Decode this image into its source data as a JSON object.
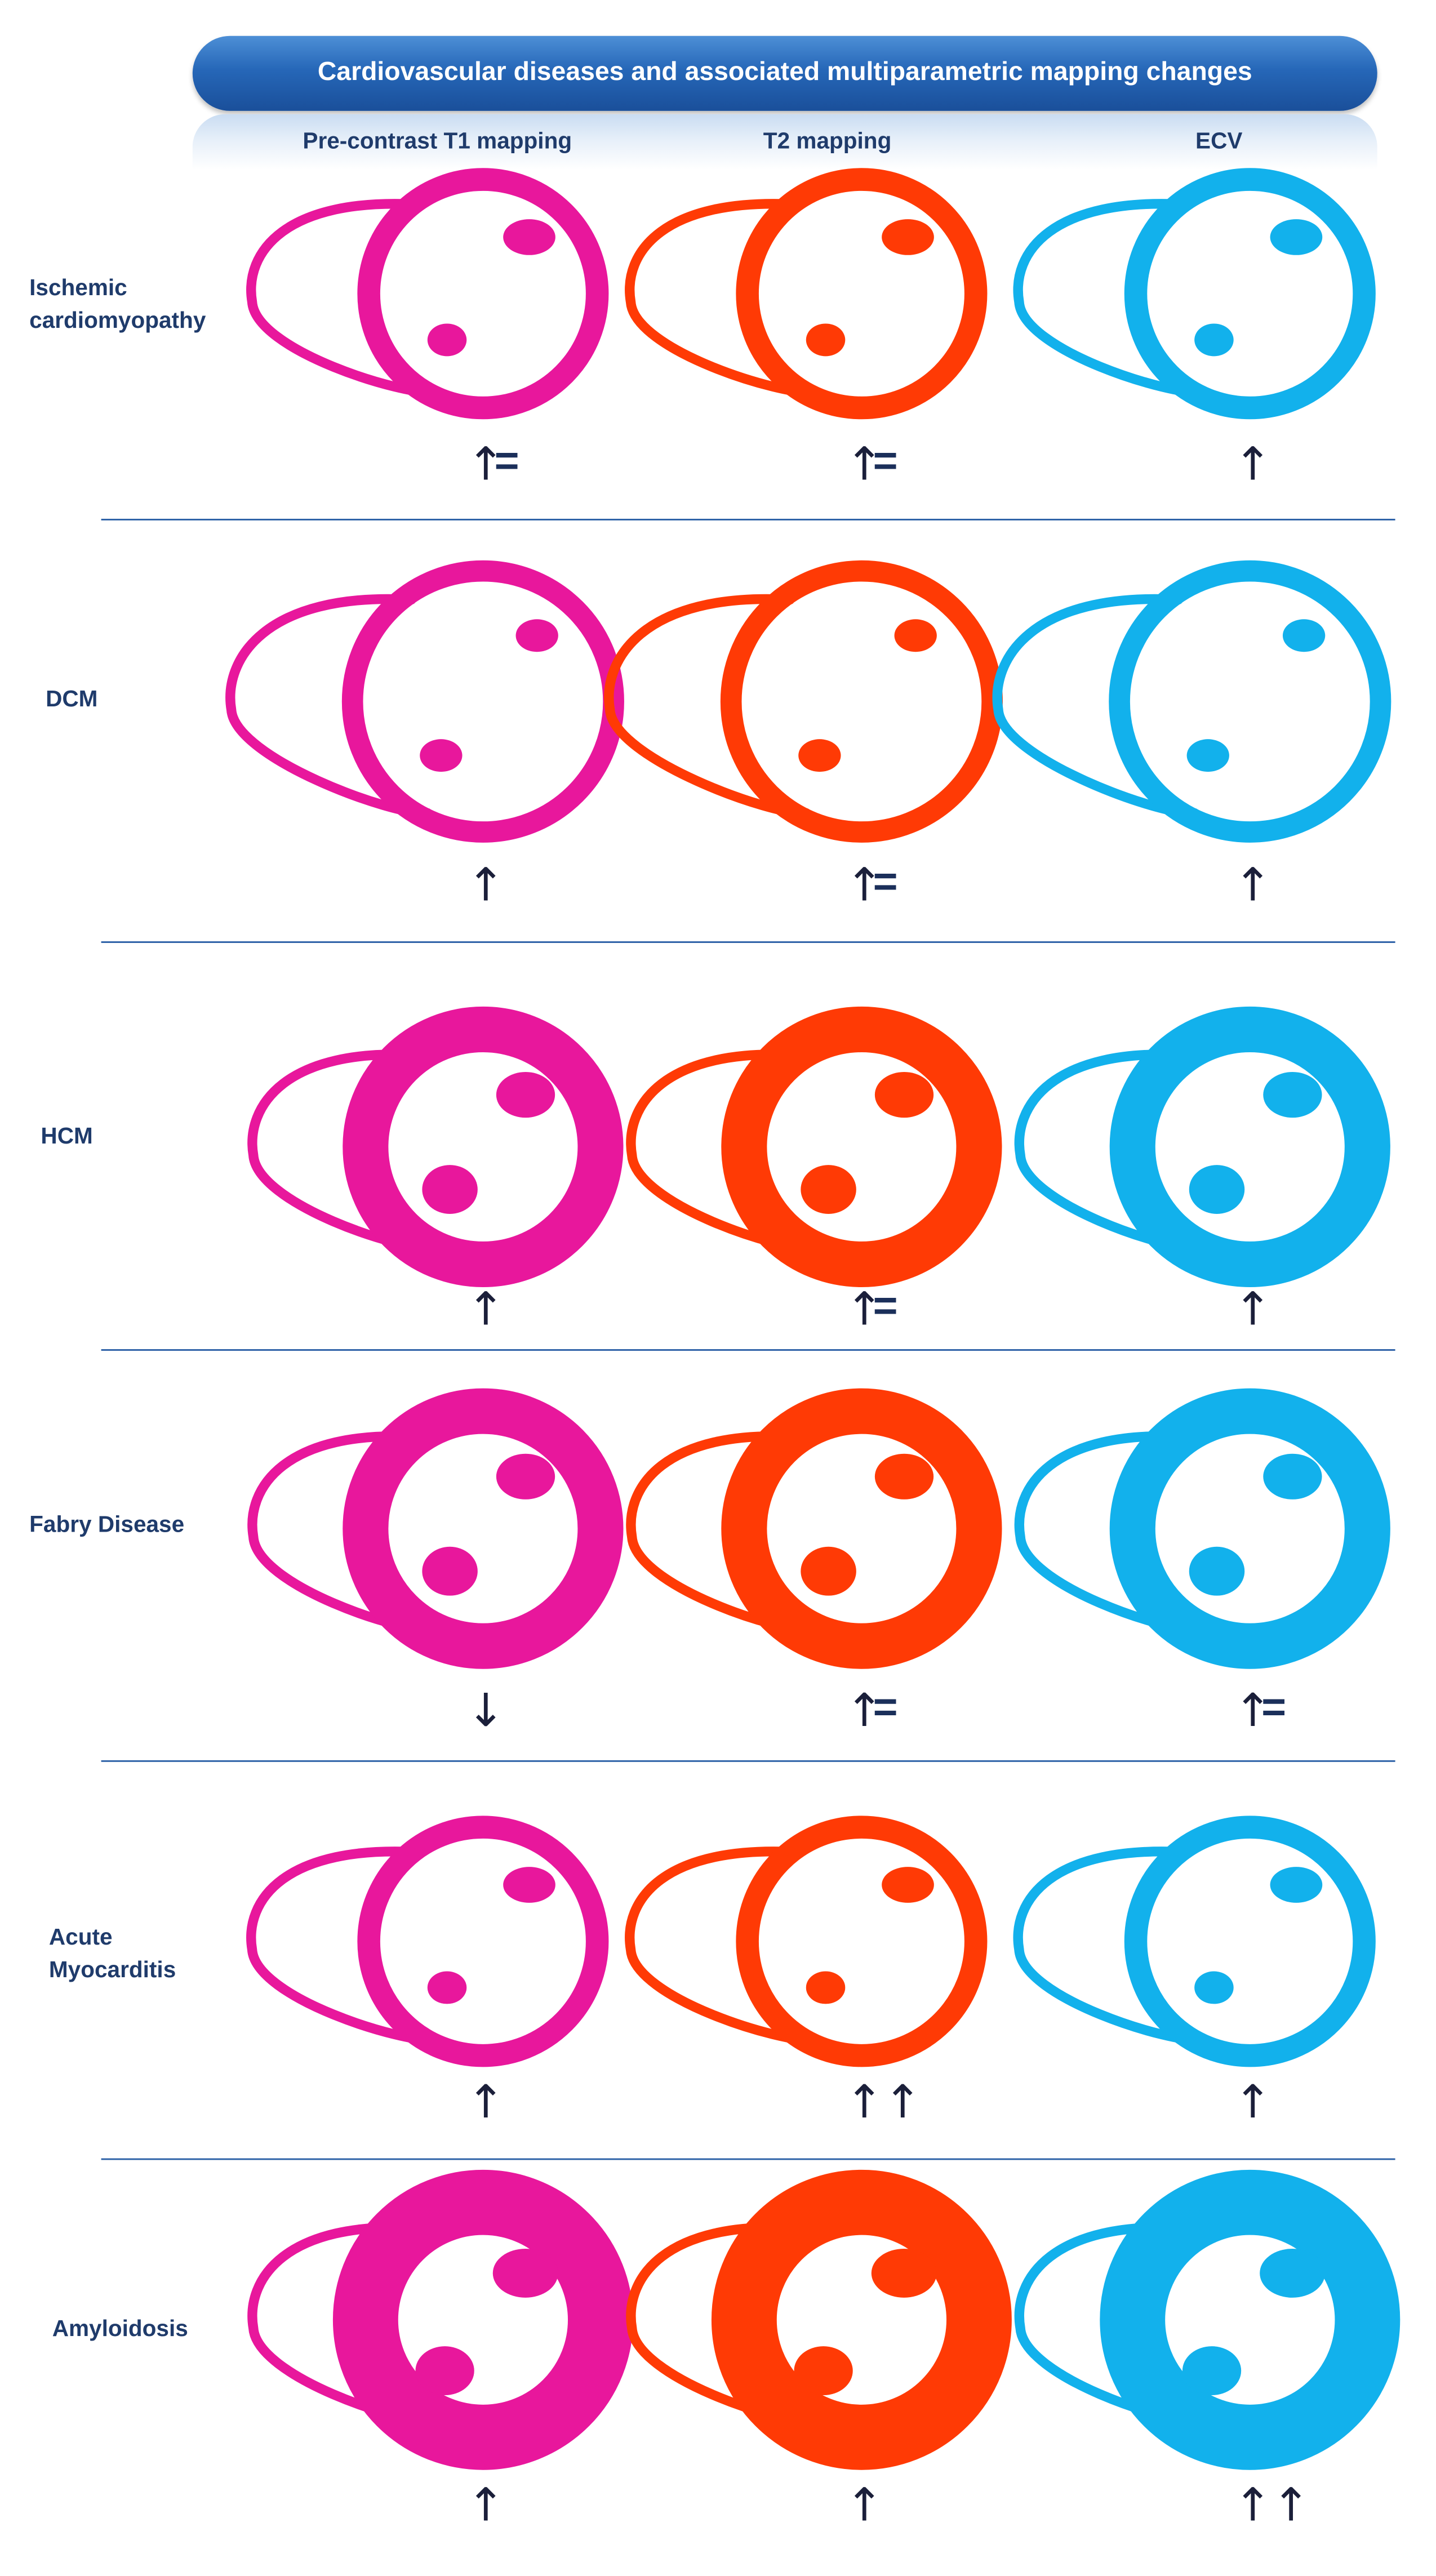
{
  "title": "Cardiovascular diseases and associated multiparametric mapping changes",
  "columns": [
    "Pre-contrast T1 mapping",
    "T2 mapping",
    "ECV"
  ],
  "colors": {
    "t1": "#e8179c",
    "t2": "#ff3a05",
    "ecv": "#12b1ec",
    "title_bar": "#2667b8",
    "text": "#1f3b6b",
    "divider": "#2a5fa6"
  },
  "rows": [
    {
      "label_lines": [
        "Ischemic",
        "cardiomyopathy"
      ],
      "style": "thin",
      "changes": [
        {
          "arrow": "↑",
          "suffix": "="
        },
        {
          "arrow": "↑",
          "suffix": "="
        },
        {
          "arrow": "↑",
          "suffix": ""
        }
      ]
    },
    {
      "label_lines": [
        "DCM"
      ],
      "style": "dilated",
      "changes": [
        {
          "arrow": "↑",
          "suffix": ""
        },
        {
          "arrow": "↑",
          "suffix": "="
        },
        {
          "arrow": "↑",
          "suffix": ""
        }
      ]
    },
    {
      "label_lines": [
        "HCM"
      ],
      "style": "thick",
      "changes": [
        {
          "arrow": "↑",
          "suffix": ""
        },
        {
          "arrow": "↑",
          "suffix": "="
        },
        {
          "arrow": "↑",
          "suffix": ""
        }
      ]
    },
    {
      "label_lines": [
        "Fabry Disease"
      ],
      "style": "thick",
      "changes": [
        {
          "arrow": "↓",
          "suffix": ""
        },
        {
          "arrow": "↑",
          "suffix": "="
        },
        {
          "arrow": "↑",
          "suffix": "="
        }
      ]
    },
    {
      "label_lines": [
        "Acute",
        "Myocarditis"
      ],
      "style": "thin",
      "changes": [
        {
          "arrow": "↑",
          "suffix": ""
        },
        {
          "arrow": "↑↑",
          "suffix": ""
        },
        {
          "arrow": "↑",
          "suffix": ""
        }
      ]
    },
    {
      "label_lines": [
        "Amyloidosis"
      ],
      "style": "amyloid",
      "changes": [
        {
          "arrow": "↑",
          "suffix": ""
        },
        {
          "arrow": "↑",
          "suffix": ""
        },
        {
          "arrow": "↑↑",
          "suffix": ""
        }
      ]
    }
  ]
}
